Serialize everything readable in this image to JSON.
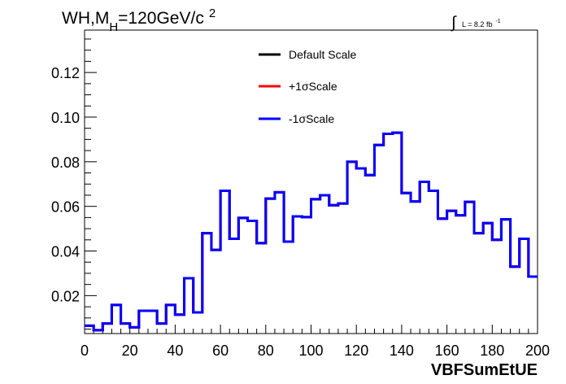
{
  "header": {
    "title_main": "WH,M",
    "title_sub": "H",
    "title_rest": "=120GeV/c",
    "title_sup": "2",
    "lumi_integral": "∫",
    "lumi_text": "L = 8.2 fb",
    "lumi_sup": "-1"
  },
  "colors": {
    "default": "#000000",
    "plus": "#ff0000",
    "minus": "#0000ff"
  },
  "chart_data": {
    "type": "line",
    "title": "",
    "xlabel": "VBFSumEtUE",
    "ylabel": "",
    "xlim": [
      0,
      200
    ],
    "ylim": [
      0.003,
      0.139
    ],
    "x_ticks": [
      0,
      20,
      40,
      60,
      80,
      100,
      120,
      140,
      160,
      180,
      200
    ],
    "y_ticks": [
      "0.02",
      "0.04",
      "0.06",
      "0.08",
      "0.10",
      "0.12"
    ],
    "bin_width": 4,
    "bin_edges_start": 0,
    "grid": false,
    "legend_position": "top-center",
    "series": [
      {
        "name": "Default Scale",
        "color": "#000000",
        "values": [
          0.0065,
          0.0045,
          0.0075,
          0.0158,
          0.0075,
          0.0058,
          0.0132,
          0.0132,
          0.0075,
          0.0158,
          0.0115,
          0.0278,
          0.0125,
          0.048,
          0.0405,
          0.067,
          0.0455,
          0.0548,
          0.0535,
          0.0435,
          0.0635,
          0.0663,
          0.0442,
          0.0555,
          0.0552,
          0.0632,
          0.065,
          0.0605,
          0.0613,
          0.08,
          0.077,
          0.074,
          0.0875,
          0.0925,
          0.093,
          0.066,
          0.0622,
          0.071,
          0.067,
          0.0545,
          0.058,
          0.056,
          0.062,
          0.048,
          0.0525,
          0.045,
          0.0542,
          0.033,
          0.0455,
          0.0285
        ]
      },
      {
        "name": "+1σScale",
        "color": "#ff0000",
        "values": [
          0.0065,
          0.0045,
          0.0075,
          0.0158,
          0.0075,
          0.0058,
          0.0132,
          0.0132,
          0.0075,
          0.0158,
          0.0115,
          0.0278,
          0.0125,
          0.048,
          0.0405,
          0.067,
          0.0455,
          0.0548,
          0.0535,
          0.0435,
          0.0635,
          0.0663,
          0.0442,
          0.0555,
          0.0552,
          0.0632,
          0.065,
          0.0605,
          0.0613,
          0.08,
          0.077,
          0.074,
          0.0875,
          0.0925,
          0.093,
          0.066,
          0.0622,
          0.071,
          0.067,
          0.0545,
          0.058,
          0.056,
          0.062,
          0.048,
          0.0525,
          0.045,
          0.0542,
          0.033,
          0.0455,
          0.0285
        ]
      },
      {
        "name": "-1σScale",
        "color": "#0000ff",
        "values": [
          0.0065,
          0.0045,
          0.0075,
          0.0158,
          0.0075,
          0.0058,
          0.0132,
          0.0132,
          0.0075,
          0.0158,
          0.0115,
          0.0278,
          0.0125,
          0.048,
          0.0405,
          0.067,
          0.0455,
          0.0548,
          0.0535,
          0.0435,
          0.0635,
          0.0663,
          0.0442,
          0.0555,
          0.0552,
          0.0632,
          0.065,
          0.0605,
          0.0613,
          0.08,
          0.077,
          0.074,
          0.0875,
          0.0925,
          0.093,
          0.066,
          0.0622,
          0.071,
          0.067,
          0.0545,
          0.058,
          0.056,
          0.062,
          0.048,
          0.0525,
          0.045,
          0.0542,
          0.033,
          0.0455,
          0.0285
        ]
      }
    ]
  }
}
